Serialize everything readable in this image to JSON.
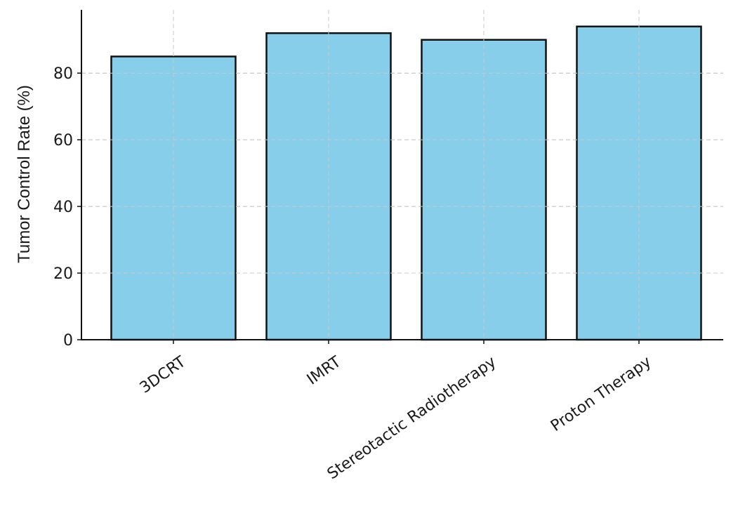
{
  "chart_data": {
    "type": "bar",
    "title": "",
    "xlabel": "",
    "ylabel": "Tumor Control Rate (%)",
    "categories": [
      "3DCRT",
      "IMRT",
      "Stereotactic Radiotherapy",
      "Proton Therapy"
    ],
    "values": [
      85,
      92,
      90,
      94
    ],
    "ylim": [
      0,
      99
    ],
    "yticks": [
      0,
      20,
      40,
      60,
      80
    ],
    "grid": true,
    "bar_color": "#87CEEB",
    "bar_edge_color": "#111111"
  }
}
